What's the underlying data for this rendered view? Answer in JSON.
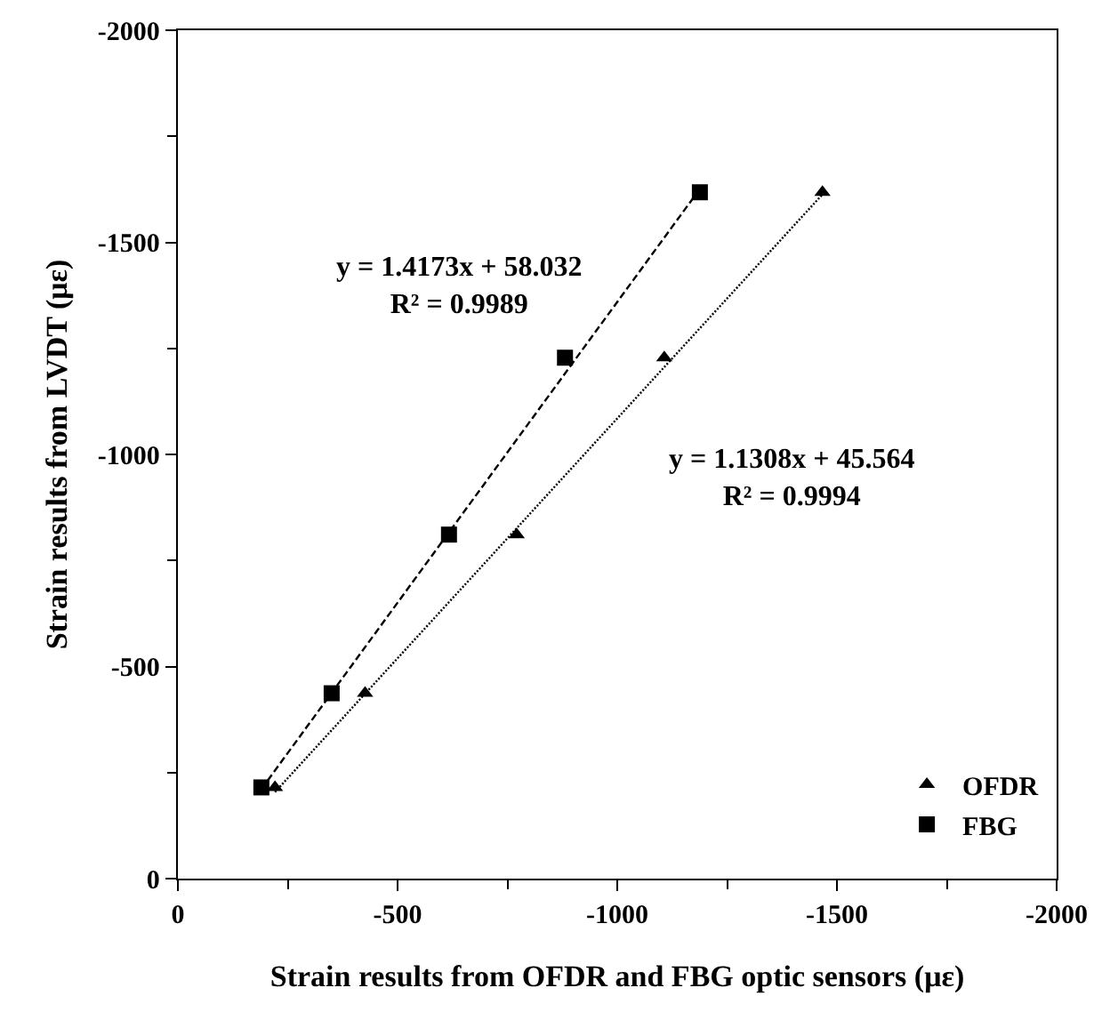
{
  "chart_data": {
    "type": "scatter",
    "xlabel": "Strain results from OFDR and FBG optic sensors (με)",
    "ylabel": "Strain results from LVDT (με)",
    "xlim": [
      0,
      -2000
    ],
    "ylim": [
      0,
      -2000
    ],
    "xticks": [
      0,
      -500,
      -1000,
      -1500,
      -2000
    ],
    "yticks": [
      0,
      -500,
      -1000,
      -1500,
      -2000
    ],
    "legend": "bottom right",
    "series": [
      {
        "name": "OFDR",
        "color": "#000000",
        "marker": "triangle",
        "x": [
          -221,
          -426,
          -771,
          -1107,
          -1467
        ],
        "values": [
          -215,
          -437,
          -811,
          -1228,
          -1618
        ]
      },
      {
        "name": "FBG",
        "color": "#000000",
        "marker": "square",
        "x": [
          -190,
          -350,
          -617,
          -881,
          -1188
        ],
        "values": [
          -215,
          -437,
          -811,
          -1228,
          -1618
        ]
      },
      {
        "type": "line",
        "color": "#000000",
        "line_style": "dotted",
        "x": [
          -221,
          -1467
        ],
        "values": [
          -204,
          -1613
        ]
      },
      {
        "type": "line",
        "color": "#000000",
        "line_style": "dashed",
        "x": [
          -190,
          -1188
        ],
        "values": [
          -211,
          -1626
        ]
      }
    ],
    "annotations": [
      "y = 1.4173x + 58.032\nR² = 0.9989",
      "y = 1.1308x + 45.564\nR² = 0.9994"
    ]
  }
}
